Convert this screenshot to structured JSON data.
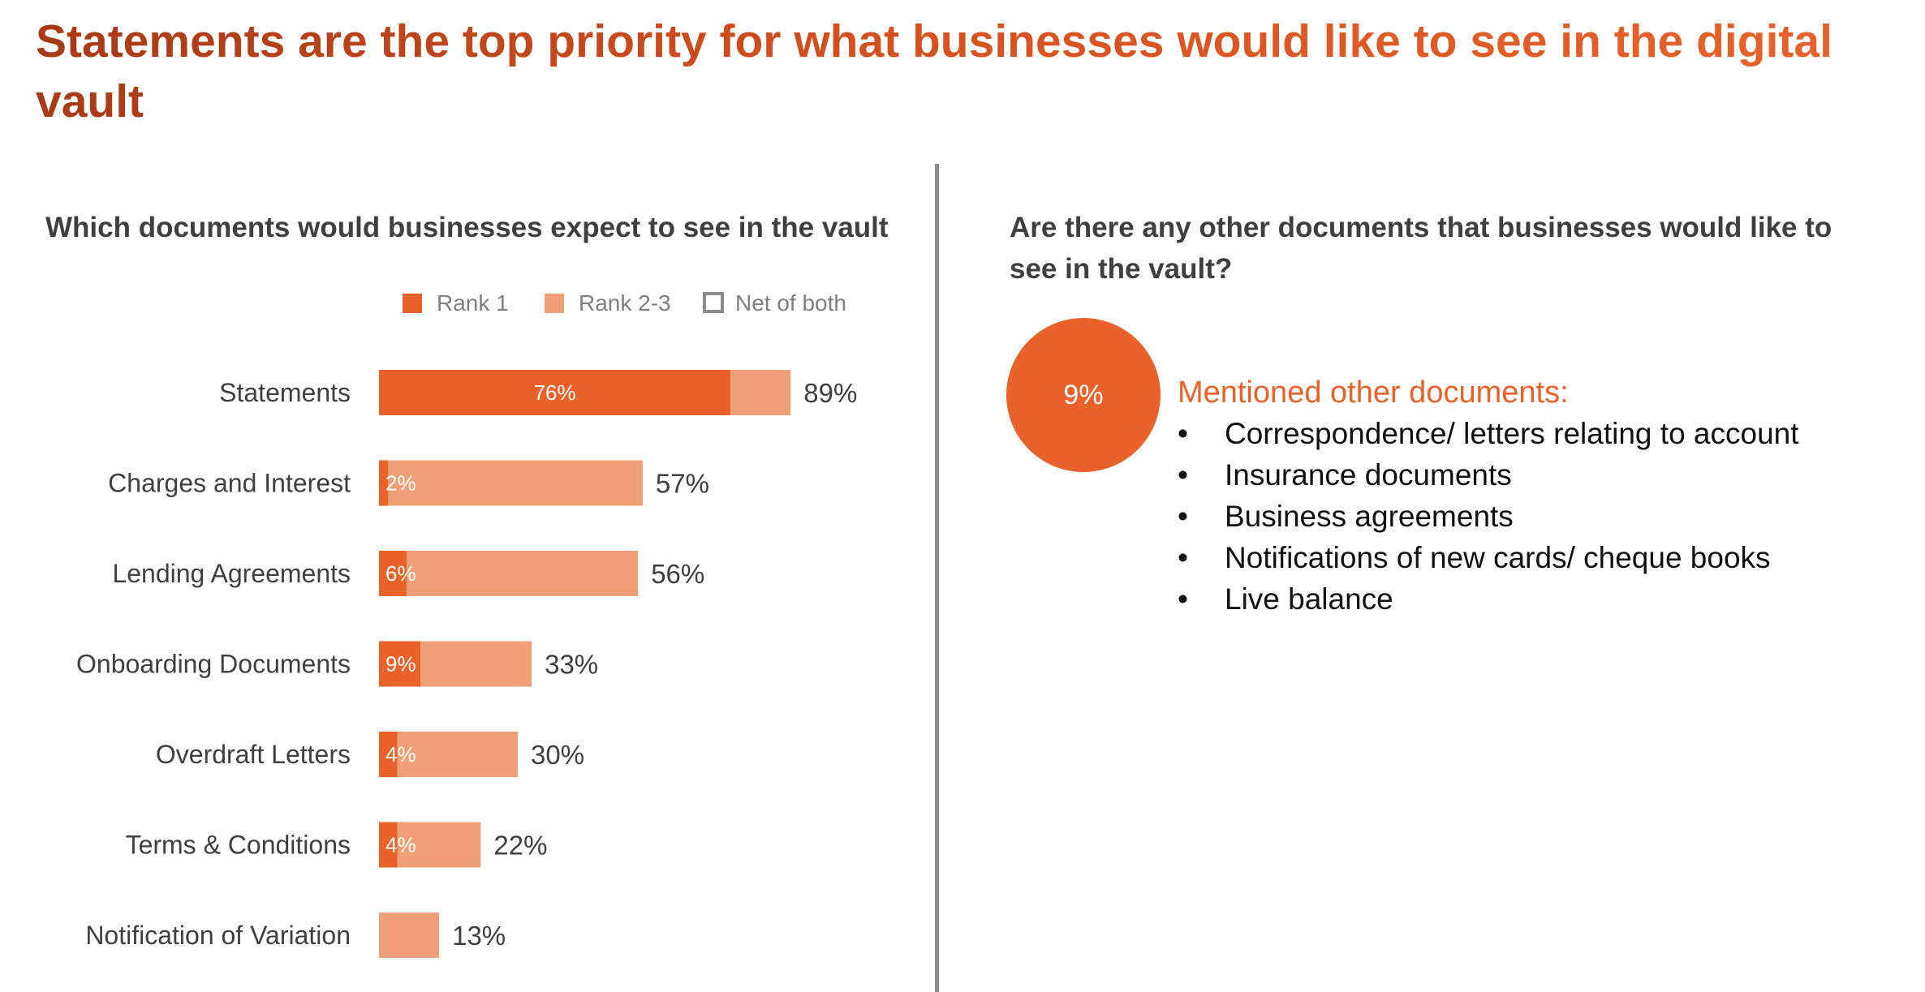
{
  "title": "Statements are the top priority for what businesses would like to see in the digital vault",
  "left_panel": {
    "subtitle": "Which documents would businesses expect to see in the vault"
  },
  "right_panel": {
    "subtitle": "Are there any other documents that businesses would like to see in the vault?",
    "stat_value": "9%",
    "mentions_heading": "Mentioned other documents:",
    "mentions": [
      "Correspondence/ letters relating to account",
      "Insurance documents",
      "Business agreements",
      "Notifications of new cards/ cheque books",
      "Live balance"
    ]
  },
  "colors": {
    "rank1": "#e8622a",
    "rank23": "#f0a077",
    "net_outline": "#8c8c8c"
  },
  "chart_data": {
    "type": "bar",
    "orientation": "horizontal",
    "stacked": true,
    "title": "Which documents would businesses expect to see in the vault",
    "legend": {
      "placement": "top-right",
      "entries": [
        "Rank 1",
        "Rank 2-3",
        "Net of both"
      ]
    },
    "xlim": [
      0,
      100
    ],
    "categories": [
      "Statements",
      "Charges and Interest",
      "Lending Agreements",
      "Onboarding Documents",
      "Overdraft Letters",
      "Terms & Conditions",
      "Notification of Variation"
    ],
    "series": [
      {
        "name": "Rank 1",
        "values": [
          76,
          2,
          6,
          9,
          4,
          4,
          0
        ]
      },
      {
        "name": "Rank 2-3",
        "values": [
          13,
          55,
          50,
          24,
          26,
          18,
          13
        ]
      }
    ],
    "net_of_both": [
      89,
      57,
      56,
      33,
      30,
      22,
      13
    ],
    "rank1_labels": [
      "76%",
      "2%",
      "6%",
      "9%",
      "4%",
      "4%",
      ""
    ],
    "net_labels": [
      "89%",
      "57%",
      "56%",
      "33%",
      "30%",
      "22%",
      "13%"
    ]
  }
}
